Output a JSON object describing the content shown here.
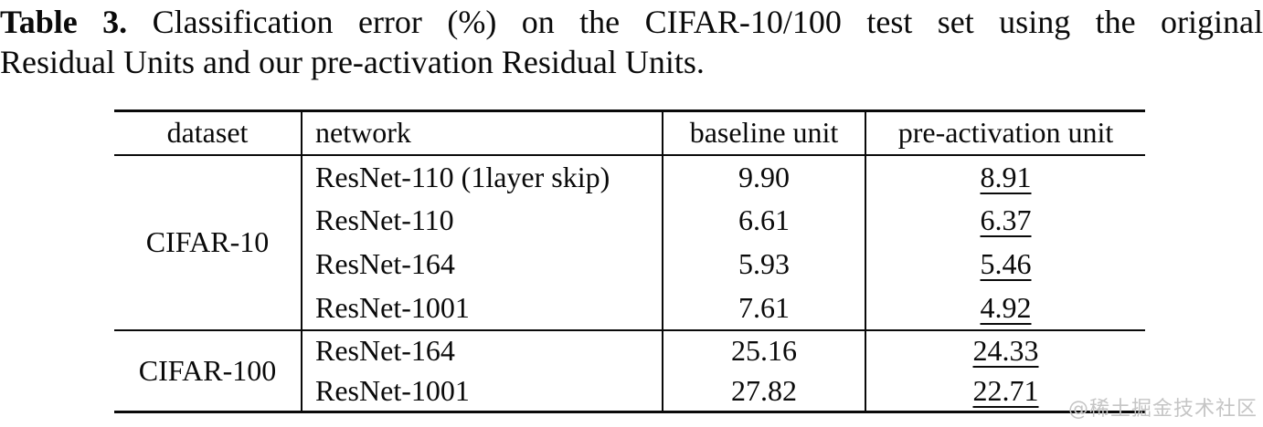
{
  "caption": {
    "label": "Table 3.",
    "line1_rest": "Classification error (%) on the CIFAR-10/100 test set using the original",
    "line2": "Residual Units and our pre-activation Residual Units."
  },
  "table": {
    "columns": [
      "dataset",
      "network",
      "baseline unit",
      "pre-activation unit"
    ],
    "groups": [
      {
        "dataset": "CIFAR-10",
        "rows": [
          {
            "network": "ResNet-110 (1layer skip)",
            "baseline": "9.90",
            "preact": "8.91"
          },
          {
            "network": "ResNet-110",
            "baseline": "6.61",
            "preact": "6.37"
          },
          {
            "network": "ResNet-164",
            "baseline": "5.93",
            "preact": "5.46"
          },
          {
            "network": "ResNet-1001",
            "baseline": "7.61",
            "preact": "4.92"
          }
        ]
      },
      {
        "dataset": "CIFAR-100",
        "rows": [
          {
            "network": "ResNet-164",
            "baseline": "25.16",
            "preact": "24.33"
          },
          {
            "network": "ResNet-1001",
            "baseline": "27.82",
            "preact": "22.71"
          }
        ]
      }
    ]
  },
  "watermark": "@稀土掘金技术社区",
  "colors": {
    "text": "#0a0a0a",
    "watermark": "#c5c5c5",
    "background": "#ffffff"
  }
}
